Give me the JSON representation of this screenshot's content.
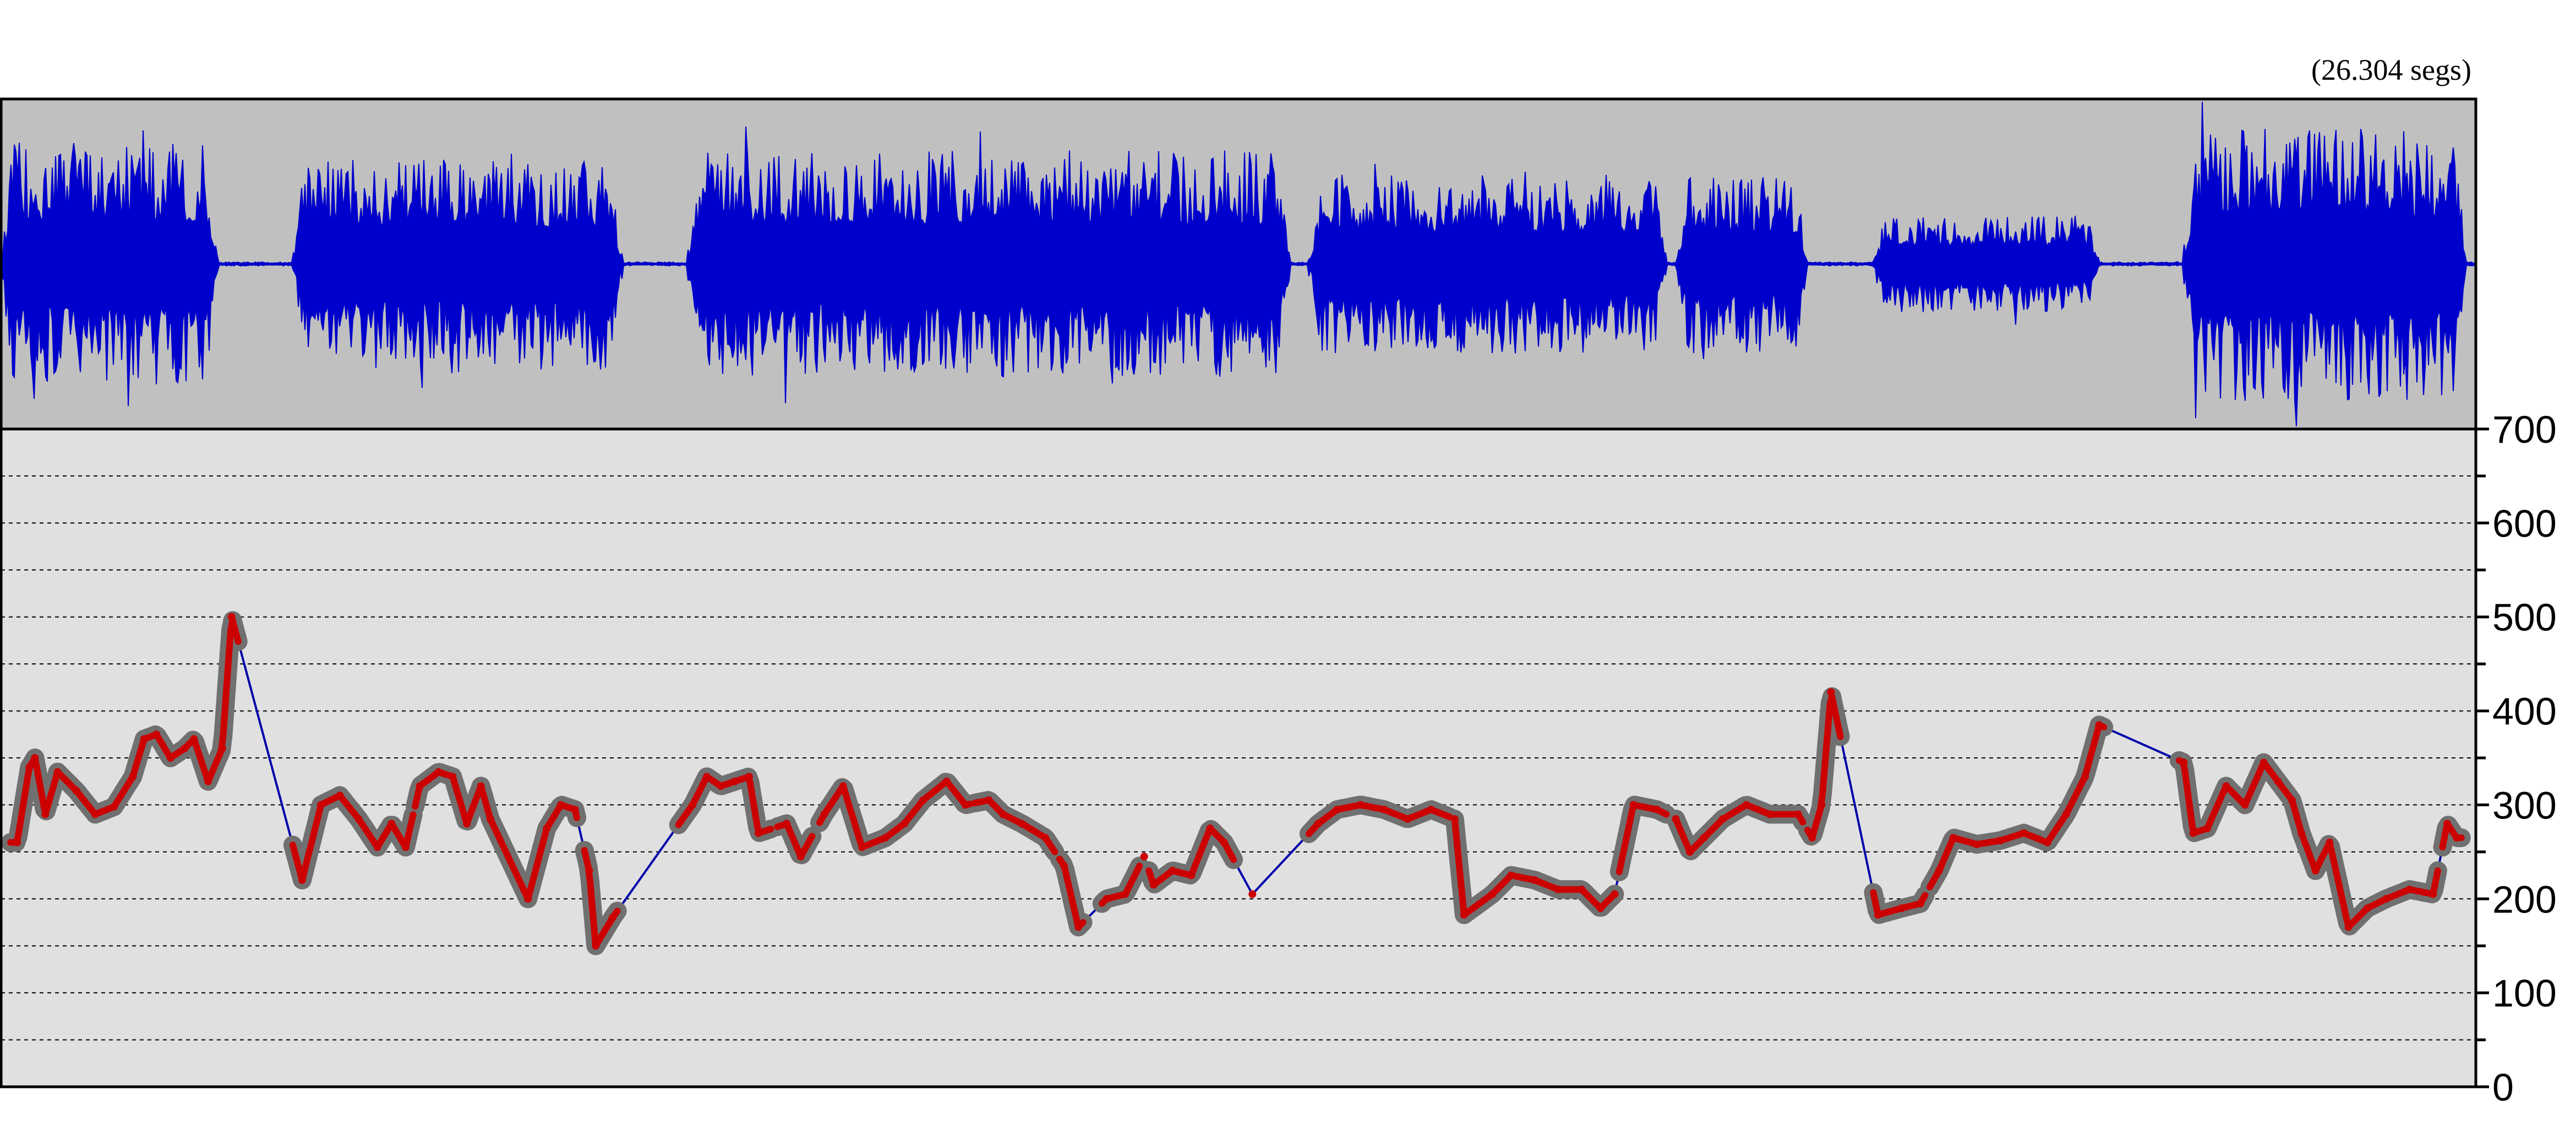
{
  "duration_label": "(26.304 segs)",
  "colors": {
    "waveform": "#0000cc",
    "waveform_bg": "#c0c0c0",
    "pitch_bg": "#e0e0e0",
    "pitch_line": "#0000aa",
    "pitch_marker_outer": "#707070",
    "pitch_marker_inner": "#cc0000",
    "grid": "#000000",
    "frame": "#000000"
  },
  "chart_data": [
    {
      "type": "line",
      "kind": "waveform",
      "x_unit": "seconds",
      "xlim": [
        0,
        26.304
      ],
      "ylim": [
        -1,
        1
      ],
      "segments": [
        {
          "start": 0.0,
          "end": 2.3,
          "amp": 0.75
        },
        {
          "start": 3.1,
          "end": 6.6,
          "amp": 0.65
        },
        {
          "start": 7.3,
          "end": 13.7,
          "amp": 0.7
        },
        {
          "start": 13.9,
          "end": 17.7,
          "amp": 0.55
        },
        {
          "start": 17.8,
          "end": 19.2,
          "amp": 0.55
        },
        {
          "start": 19.9,
          "end": 22.3,
          "amp": 0.3
        },
        {
          "start": 23.2,
          "end": 26.2,
          "amp": 0.85
        }
      ]
    },
    {
      "type": "scatter",
      "kind": "pitch",
      "x_unit": "seconds",
      "xlim": [
        0,
        26.304
      ],
      "ylim": [
        0,
        700
      ],
      "yticks": [
        0,
        100,
        200,
        300,
        400,
        500,
        600,
        700
      ],
      "grid_step": 50,
      "grid": true,
      "points": [
        [
          0.17,
          260
        ],
        [
          0.3,
          340
        ],
        [
          0.36,
          350
        ],
        [
          0.47,
          290
        ],
        [
          0.6,
          335
        ],
        [
          0.8,
          315
        ],
        [
          1.0,
          290
        ],
        [
          1.2,
          298
        ],
        [
          1.4,
          330
        ],
        [
          1.52,
          370
        ],
        [
          1.65,
          375
        ],
        [
          1.8,
          350
        ],
        [
          1.95,
          360
        ],
        [
          2.05,
          370
        ],
        [
          2.2,
          325
        ],
        [
          2.35,
          360
        ],
        [
          2.45,
          500
        ],
        [
          3.2,
          220
        ],
        [
          3.4,
          300
        ],
        [
          3.6,
          310
        ],
        [
          3.8,
          285
        ],
        [
          4.0,
          255
        ],
        [
          4.15,
          280
        ],
        [
          4.3,
          255
        ],
        [
          4.45,
          320
        ],
        [
          4.65,
          335
        ],
        [
          4.8,
          330
        ],
        [
          4.95,
          280
        ],
        [
          5.1,
          320
        ],
        [
          5.2,
          285
        ],
        [
          5.6,
          200
        ],
        [
          5.8,
          275
        ],
        [
          5.95,
          300
        ],
        [
          6.1,
          295
        ],
        [
          6.25,
          230
        ],
        [
          6.32,
          150
        ],
        [
          6.5,
          180
        ],
        [
          7.35,
          300
        ],
        [
          7.5,
          330
        ],
        [
          7.65,
          320
        ],
        [
          7.8,
          325
        ],
        [
          7.95,
          330
        ],
        [
          8.05,
          270
        ],
        [
          8.35,
          280
        ],
        [
          8.5,
          245
        ],
        [
          8.75,
          290
        ],
        [
          8.95,
          320
        ],
        [
          9.15,
          255
        ],
        [
          9.4,
          265
        ],
        [
          9.6,
          280
        ],
        [
          9.8,
          305
        ],
        [
          10.05,
          325
        ],
        [
          10.25,
          300
        ],
        [
          10.5,
          305
        ],
        [
          10.65,
          290
        ],
        [
          10.85,
          280
        ],
        [
          11.1,
          265
        ],
        [
          11.3,
          235
        ],
        [
          11.45,
          170
        ],
        [
          11.75,
          200
        ],
        [
          11.95,
          205
        ],
        [
          12.15,
          245
        ],
        [
          12.25,
          215
        ],
        [
          12.45,
          230
        ],
        [
          12.65,
          225
        ],
        [
          12.85,
          275
        ],
        [
          13.0,
          260
        ],
        [
          13.3,
          205
        ],
        [
          14.0,
          280
        ],
        [
          14.2,
          295
        ],
        [
          14.45,
          300
        ],
        [
          14.7,
          295
        ],
        [
          14.95,
          285
        ],
        [
          15.2,
          295
        ],
        [
          15.45,
          285
        ],
        [
          15.55,
          183
        ],
        [
          15.85,
          205
        ],
        [
          16.05,
          225
        ],
        [
          16.3,
          220
        ],
        [
          16.55,
          210
        ],
        [
          16.8,
          210
        ],
        [
          17.0,
          190
        ],
        [
          17.15,
          205
        ],
        [
          17.35,
          300
        ],
        [
          17.6,
          295
        ],
        [
          17.8,
          285
        ],
        [
          17.95,
          250
        ],
        [
          18.1,
          265
        ],
        [
          18.3,
          285
        ],
        [
          18.55,
          300
        ],
        [
          18.8,
          290
        ],
        [
          19.1,
          290
        ],
        [
          19.25,
          265
        ],
        [
          19.35,
          300
        ],
        [
          19.45,
          420
        ],
        [
          19.95,
          183
        ],
        [
          20.2,
          190
        ],
        [
          20.4,
          195
        ],
        [
          20.6,
          230
        ],
        [
          20.75,
          265
        ],
        [
          21.0,
          258
        ],
        [
          21.25,
          262
        ],
        [
          21.5,
          270
        ],
        [
          21.75,
          260
        ],
        [
          21.95,
          290
        ],
        [
          22.15,
          330
        ],
        [
          22.3,
          385
        ],
        [
          23.2,
          345
        ],
        [
          23.3,
          270
        ],
        [
          23.45,
          275
        ],
        [
          23.65,
          320
        ],
        [
          23.85,
          300
        ],
        [
          24.05,
          345
        ],
        [
          24.2,
          325
        ],
        [
          24.35,
          305
        ],
        [
          24.45,
          270
        ],
        [
          24.6,
          230
        ],
        [
          24.75,
          260
        ],
        [
          24.95,
          170
        ],
        [
          25.15,
          190
        ],
        [
          25.35,
          200
        ],
        [
          25.6,
          210
        ],
        [
          25.85,
          205
        ],
        [
          26.0,
          280
        ],
        [
          26.1,
          265
        ]
      ],
      "voiced_segments": [
        [
          0.1,
          2.52
        ],
        [
          3.1,
          4.38
        ],
        [
          4.4,
          5.62
        ],
        [
          5.62,
          6.12
        ],
        [
          6.2,
          6.55
        ],
        [
          7.2,
          8.18
        ],
        [
          8.25,
          8.62
        ],
        [
          8.7,
          9.2
        ],
        [
          9.2,
          10.3
        ],
        [
          10.35,
          11.2
        ],
        [
          11.25,
          11.5
        ],
        [
          11.7,
          12.1
        ],
        [
          12.2,
          13.1
        ],
        [
          13.9,
          15.4
        ],
        [
          15.45,
          17.15
        ],
        [
          17.2,
          17.7
        ],
        [
          17.8,
          19.15
        ],
        [
          19.2,
          19.55
        ],
        [
          19.9,
          20.45
        ],
        [
          20.5,
          22.35
        ],
        [
          23.15,
          24.6
        ],
        [
          24.6,
          25.9
        ],
        [
          25.95,
          26.15
        ]
      ]
    }
  ]
}
